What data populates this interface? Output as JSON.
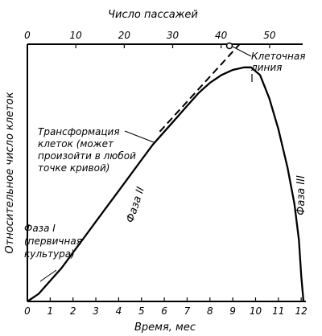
{
  "chart_data": {
    "type": "line",
    "xlabel": "Время, мес",
    "ylabel": "Относительное число клеток",
    "top_axis_label": "Число пассажей",
    "x_ticks": [
      "0",
      "1",
      "2",
      "3",
      "4",
      "5",
      "6",
      "7",
      "8",
      "9",
      "10",
      "11",
      "12"
    ],
    "top_ticks": [
      "0",
      "10",
      "20",
      "30",
      "40",
      "50"
    ],
    "xlim": [
      0,
      12.1
    ],
    "top_lim": [
      0,
      57
    ],
    "ylim": [
      0,
      1
    ],
    "grid": false,
    "series": [
      {
        "name": "",
        "style": "solid",
        "x": [
          0,
          0.5,
          1,
          1.5,
          2,
          2.5,
          3,
          3.5,
          4,
          4.5,
          5,
          5.5,
          6,
          6.5,
          7,
          7.5,
          8,
          8.5,
          9,
          9.5,
          9.8,
          10.2,
          10.6,
          11,
          11.4,
          11.7,
          11.9,
          12.0,
          12.1
        ],
        "y": [
          0,
          0.03,
          0.08,
          0.13,
          0.19,
          0.25,
          0.31,
          0.37,
          0.43,
          0.49,
          0.55,
          0.61,
          0.66,
          0.71,
          0.76,
          0.81,
          0.85,
          0.88,
          0.9,
          0.91,
          0.91,
          0.88,
          0.79,
          0.67,
          0.52,
          0.38,
          0.24,
          0.1,
          0
        ]
      },
      {
        "name": "",
        "style": "dashed",
        "x": [
          5.8,
          9.3
        ],
        "y": [
          0.66,
          1.0
        ]
      }
    ],
    "annotations": {
      "cell_line": "Клеточная\nлиния",
      "transformation": "Трансформация\nклеток (может\nпроизойти в любой\nточке кривой)",
      "phase1": "Фаза I\n(первичная\nкультура)",
      "phase2": "Фаза II",
      "phase3": "Фаза III"
    }
  }
}
